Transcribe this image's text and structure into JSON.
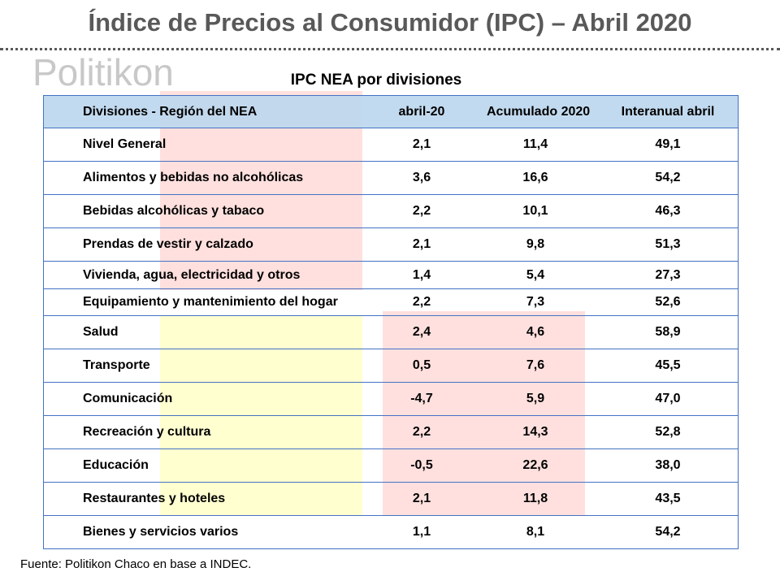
{
  "title": "Índice de Precios al Consumidor (IPC) – Abril 2020",
  "subtitle": "IPC NEA por divisiones",
  "watermark": "Politikon",
  "table": {
    "headers": [
      "Divisiones - Región del NEA",
      "abril-20",
      "Acumulado 2020",
      "Interanual abril"
    ],
    "rows": [
      [
        "Nivel General",
        "2,1",
        "11,4",
        "49,1"
      ],
      [
        "Alimentos y bebidas no alcohólicas",
        "3,6",
        "16,6",
        "54,2"
      ],
      [
        "Bebidas alcohólicas y tabaco",
        "2,2",
        "10,1",
        "46,3"
      ],
      [
        "Prendas de vestir y calzado",
        "2,1",
        "9,8",
        "51,3"
      ],
      [
        "Vivienda, agua, electricidad y otros",
        "1,4",
        "5,4",
        "27,3"
      ],
      [
        "Equipamiento y mantenimiento del hogar",
        "2,2",
        "7,3",
        "52,6"
      ],
      [
        "Salud",
        "2,4",
        "4,6",
        "58,9"
      ],
      [
        "Transporte",
        "0,5",
        "7,6",
        "45,5"
      ],
      [
        "Comunicación",
        "-4,7",
        "5,9",
        "47,0"
      ],
      [
        "Recreación y cultura",
        "2,2",
        "14,3",
        "52,8"
      ],
      [
        "Educación",
        "-0,5",
        "22,6",
        "38,0"
      ],
      [
        "Restaurantes y hoteles",
        "2,1",
        "11,8",
        "43,5"
      ],
      [
        "Bienes y servicios varios",
        "1,1",
        "8,1",
        "54,2"
      ]
    ]
  },
  "source": {
    "label": "Fuente",
    "text": ": Politikon Chaco en base a INDEC."
  },
  "colors": {
    "header_bg": "#bdd7ee",
    "border": "#4472c4",
    "highlight_pink": "#ffe0de",
    "highlight_yellow": "#ffffd0",
    "title": "#595959"
  }
}
